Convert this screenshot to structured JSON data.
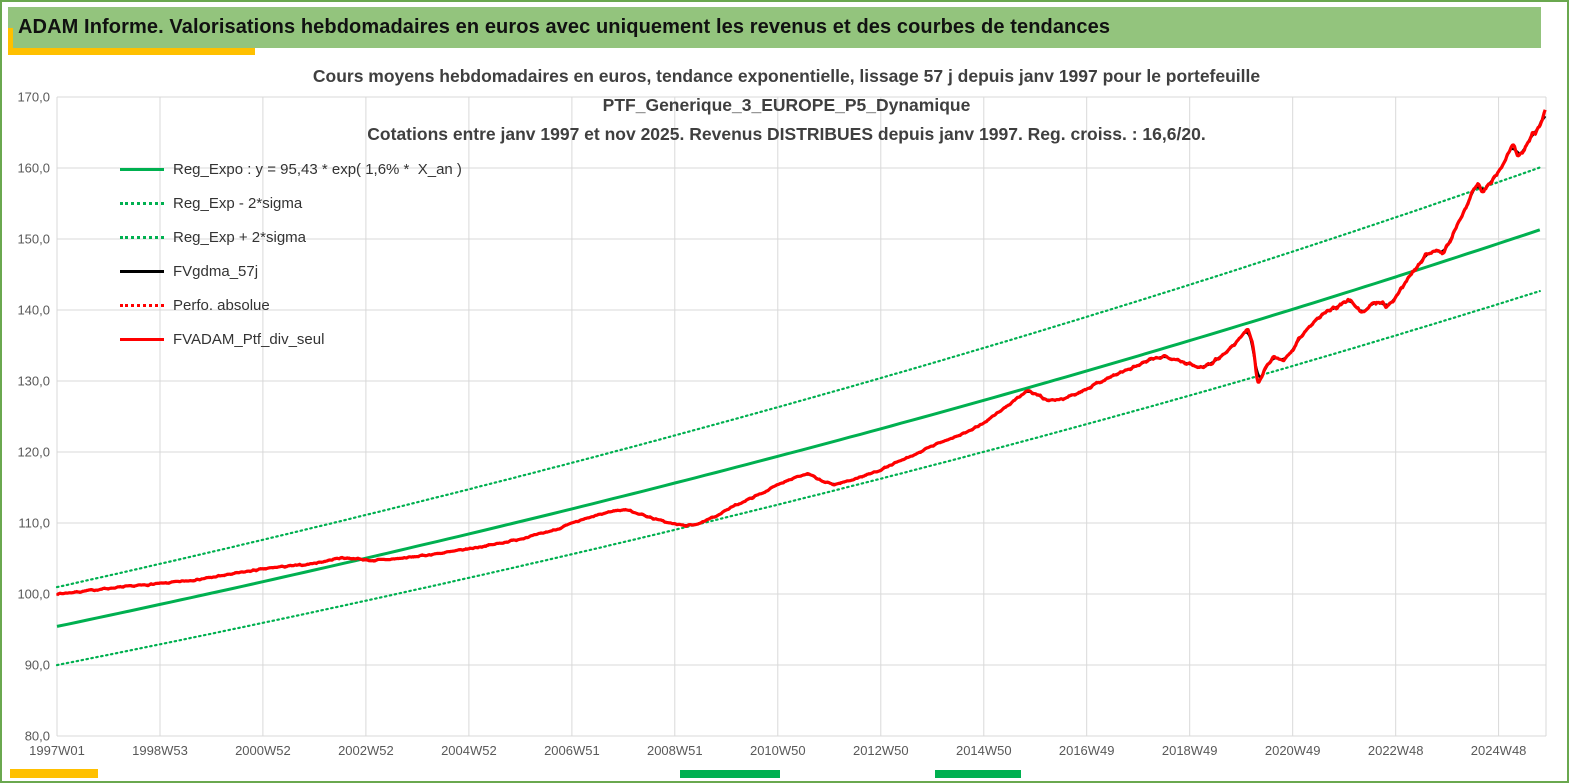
{
  "window": {
    "border_color": "#6aa84f",
    "bg": "#ffffff"
  },
  "header": {
    "title": "ADAM Informe. Valorisations hebdomadaires en euros avec uniquement les revenus et des courbes de tendances",
    "bg_color": "#93c47d",
    "text_color": "#111111",
    "accent_color": "#ffc000"
  },
  "footer_marks": {
    "yellow": "#ffc000",
    "green": "#00b050"
  },
  "chart_data": {
    "type": "line",
    "title_lines": [
      "Cours moyens hebdomadaires  en euros, tendance exponentielle, lissage 57 j depuis janv 1997 pour le portefeuille",
      "PTF_Generique_3_EUROPE_P5_Dynamique",
      "Cotations entre janv 1997 et nov 2025. Revenus DISTRIBUES depuis janv 1997. Reg. croiss. : 16,6/20."
    ],
    "title_color": "#3f3f3f",
    "grid_color": "#d9d9d9",
    "axis_text_color": "#595959",
    "legend_position": "upper-left-inside",
    "x_axis": {
      "min": 1997.0,
      "max": 2025.92,
      "ticks": [
        {
          "label": "1997W01",
          "x": 1997.0
        },
        {
          "label": "1998W53",
          "x": 1999.0
        },
        {
          "label": "2000W52",
          "x": 2001.0
        },
        {
          "label": "2002W52",
          "x": 2003.0
        },
        {
          "label": "2004W52",
          "x": 2005.0
        },
        {
          "label": "2006W51",
          "x": 2007.0
        },
        {
          "label": "2008W51",
          "x": 2009.0
        },
        {
          "label": "2010W50",
          "x": 2011.0
        },
        {
          "label": "2012W50",
          "x": 2013.0
        },
        {
          "label": "2014W50",
          "x": 2015.0
        },
        {
          "label": "2016W49",
          "x": 2017.0
        },
        {
          "label": "2018W49",
          "x": 2019.0
        },
        {
          "label": "2020W49",
          "x": 2021.0
        },
        {
          "label": "2022W48",
          "x": 2023.0
        },
        {
          "label": "2024W48",
          "x": 2025.0
        }
      ]
    },
    "y_axis": {
      "min": 80,
      "max": 170,
      "step": 10,
      "ticks": [
        {
          "label": "80,0",
          "value": 80
        },
        {
          "label": "90,0",
          "value": 90
        },
        {
          "label": "100,0",
          "value": 100
        },
        {
          "label": "110,0",
          "value": 110
        },
        {
          "label": "120,0",
          "value": 120
        },
        {
          "label": "130,0",
          "value": 130
        },
        {
          "label": "140,0",
          "value": 140
        },
        {
          "label": "150,0",
          "value": 150
        },
        {
          "label": "160,0",
          "value": 160
        },
        {
          "label": "170,0",
          "value": 170
        }
      ]
    },
    "regression": {
      "base": 95.43,
      "rate": 0.016,
      "upper_factor": 1.058,
      "lower_factor": 0.943
    },
    "series": [
      {
        "name": "Reg_Expo : y = 95,43 * exp( 1,6% *  X_an )",
        "style": "solid",
        "color": "#00b050",
        "width": 3,
        "kind": "regression"
      },
      {
        "name": "Reg_Exp - 2*sigma",
        "style": "dotted",
        "color": "#00b050",
        "width": 2.2,
        "kind": "regression_lower"
      },
      {
        "name": "Reg_Exp + 2*sigma",
        "style": "dotted",
        "color": "#00b050",
        "width": 2.2,
        "kind": "regression_upper"
      },
      {
        "name": "FVgdma_57j",
        "style": "solid",
        "color": "#000000",
        "width": 2.4,
        "kind": "smoothed"
      },
      {
        "name": "Perfo. absolue",
        "style": "dotted",
        "color": "#ff0000",
        "width": 1.5,
        "kind": "price_dotted"
      },
      {
        "name": "FVADAM_Ptf_div_seul",
        "style": "solid",
        "color": "#ff0000",
        "width": 3.2,
        "kind": "price"
      }
    ],
    "price_keypoints": {
      "x": [
        1997.0,
        1997.4,
        1998.0,
        1998.6,
        1999.2,
        1999.8,
        2000.3,
        2000.8,
        2001.3,
        2001.8,
        2002.2,
        2002.5,
        2002.8,
        2003.1,
        2003.5,
        2003.9,
        2004.3,
        2004.7,
        2005.1,
        2005.5,
        2005.9,
        2006.3,
        2006.7,
        2007.1,
        2007.5,
        2007.8,
        2008.05,
        2008.35,
        2008.65,
        2008.95,
        2009.25,
        2009.55,
        2009.85,
        2010.15,
        2010.45,
        2010.75,
        2011.05,
        2011.35,
        2011.6,
        2011.85,
        2012.1,
        2012.4,
        2012.7,
        2013.0,
        2013.3,
        2013.6,
        2013.9,
        2014.2,
        2014.5,
        2014.8,
        2015.1,
        2015.4,
        2015.65,
        2015.85,
        2016.05,
        2016.25,
        2016.5,
        2016.8,
        2017.1,
        2017.4,
        2017.7,
        2018.0,
        2018.25,
        2018.5,
        2018.75,
        2019.0,
        2019.2,
        2019.45,
        2019.7,
        2019.95,
        2020.12,
        2020.22,
        2020.32,
        2020.5,
        2020.65,
        2020.8,
        2020.95,
        2021.15,
        2021.35,
        2021.55,
        2021.75,
        2021.95,
        2022.1,
        2022.25,
        2022.4,
        2022.55,
        2022.7,
        2022.85,
        2023.05,
        2023.25,
        2023.45,
        2023.6,
        2023.75,
        2023.9,
        2024.05,
        2024.2,
        2024.35,
        2024.5,
        2024.6,
        2024.7,
        2024.8,
        2024.9,
        2025.0,
        2025.1,
        2025.2,
        2025.28,
        2025.36,
        2025.45,
        2025.55,
        2025.65,
        2025.75,
        2025.83,
        2025.9
      ],
      "y": [
        100.0,
        100.3,
        100.8,
        101.2,
        101.6,
        102.1,
        102.7,
        103.3,
        103.8,
        104.1,
        104.6,
        105.1,
        105.0,
        104.7,
        104.9,
        105.2,
        105.6,
        106.0,
        106.5,
        107.0,
        107.6,
        108.3,
        109.1,
        110.2,
        111.1,
        111.7,
        111.9,
        111.2,
        110.5,
        109.9,
        109.6,
        110.1,
        111.2,
        112.4,
        113.4,
        114.4,
        115.6,
        116.5,
        116.9,
        115.9,
        115.4,
        116.0,
        116.7,
        117.5,
        118.5,
        119.4,
        120.5,
        121.5,
        122.3,
        123.2,
        124.6,
        126.2,
        127.6,
        128.6,
        128.0,
        127.2,
        127.4,
        128.2,
        129.3,
        130.4,
        131.3,
        132.2,
        133.0,
        133.5,
        133.1,
        132.3,
        131.9,
        132.7,
        134.0,
        135.8,
        137.4,
        135.5,
        129.6,
        132.2,
        133.5,
        132.9,
        133.9,
        136.1,
        137.9,
        139.1,
        140.1,
        140.9,
        141.5,
        140.2,
        139.8,
        140.9,
        141.2,
        140.4,
        142.3,
        144.6,
        146.6,
        147.9,
        148.4,
        147.9,
        149.7,
        151.9,
        154.3,
        156.8,
        157.9,
        156.7,
        157.5,
        158.5,
        159.4,
        160.6,
        162.2,
        163.5,
        161.8,
        161.9,
        163.2,
        164.6,
        165.4,
        166.6,
        168.3
      ]
    }
  }
}
